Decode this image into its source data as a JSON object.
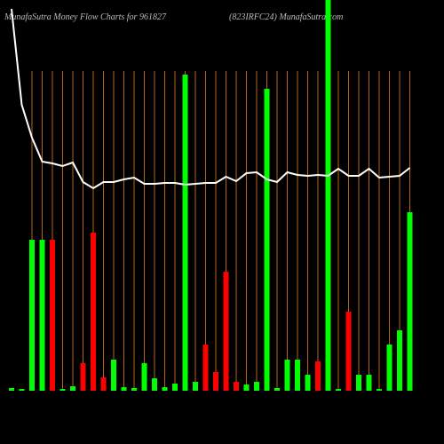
{
  "chart_data": {
    "type": "bar",
    "title": "MunafaSutra  Money Flow  Charts for 961827",
    "subtitle": "(823IRFC24) MunafaSutra.com",
    "categories": [
      null,
      null,
      null,
      null,
      null,
      null,
      null,
      null,
      null,
      null,
      null,
      null,
      null,
      null,
      null,
      null,
      null,
      null,
      null,
      null,
      null,
      null,
      null,
      null,
      null,
      null,
      null,
      null,
      null,
      null,
      null,
      null,
      null,
      null,
      null,
      null,
      null,
      null,
      null,
      null
    ],
    "values": [
      3,
      2,
      170,
      170,
      170,
      2,
      5,
      31,
      178,
      15,
      35,
      4,
      3,
      31,
      14,
      4,
      8,
      356,
      10,
      52,
      21,
      134,
      10,
      7,
      10,
      340,
      3,
      35,
      35,
      18,
      33,
      440,
      2,
      89,
      18,
      18,
      2,
      52,
      68,
      201
    ],
    "colors": [
      "#00ff00",
      "#00ff00",
      "#00ff00",
      "#00ff00",
      "#ff0000",
      "#00ff00",
      "#00ff00",
      "#ff0000",
      "#ff0000",
      "#ff0000",
      "#00ff00",
      "#00ff00",
      "#00ff00",
      "#00ff00",
      "#00ff00",
      "#00ff00",
      "#00ff00",
      "#00ff00",
      "#00ff00",
      "#ff0000",
      "#ff0000",
      "#ff0000",
      "#ff0000",
      "#00ff00",
      "#00ff00",
      "#00ff00",
      "#00ff00",
      "#00ff00",
      "#00ff00",
      "#00ff00",
      "#ff0000",
      "#00ff00",
      "#00ff00",
      "#ff0000",
      "#00ff00",
      "#00ff00",
      "#00ff00",
      "#00ff00",
      "#00ff00",
      "#00ff00"
    ],
    "line_values": [
      430,
      322,
      285,
      258,
      256,
      253,
      257,
      235,
      228,
      235,
      235,
      238,
      240,
      233,
      233,
      234,
      234,
      232,
      233,
      234,
      234,
      241,
      236,
      245,
      246,
      238,
      235,
      246,
      243,
      242,
      243,
      242,
      250,
      242,
      242,
      250,
      240,
      241,
      242,
      251
    ],
    "line_color": "#ffffff",
    "grid_color": "#b5651d",
    "ylim": [
      0,
      440
    ]
  }
}
